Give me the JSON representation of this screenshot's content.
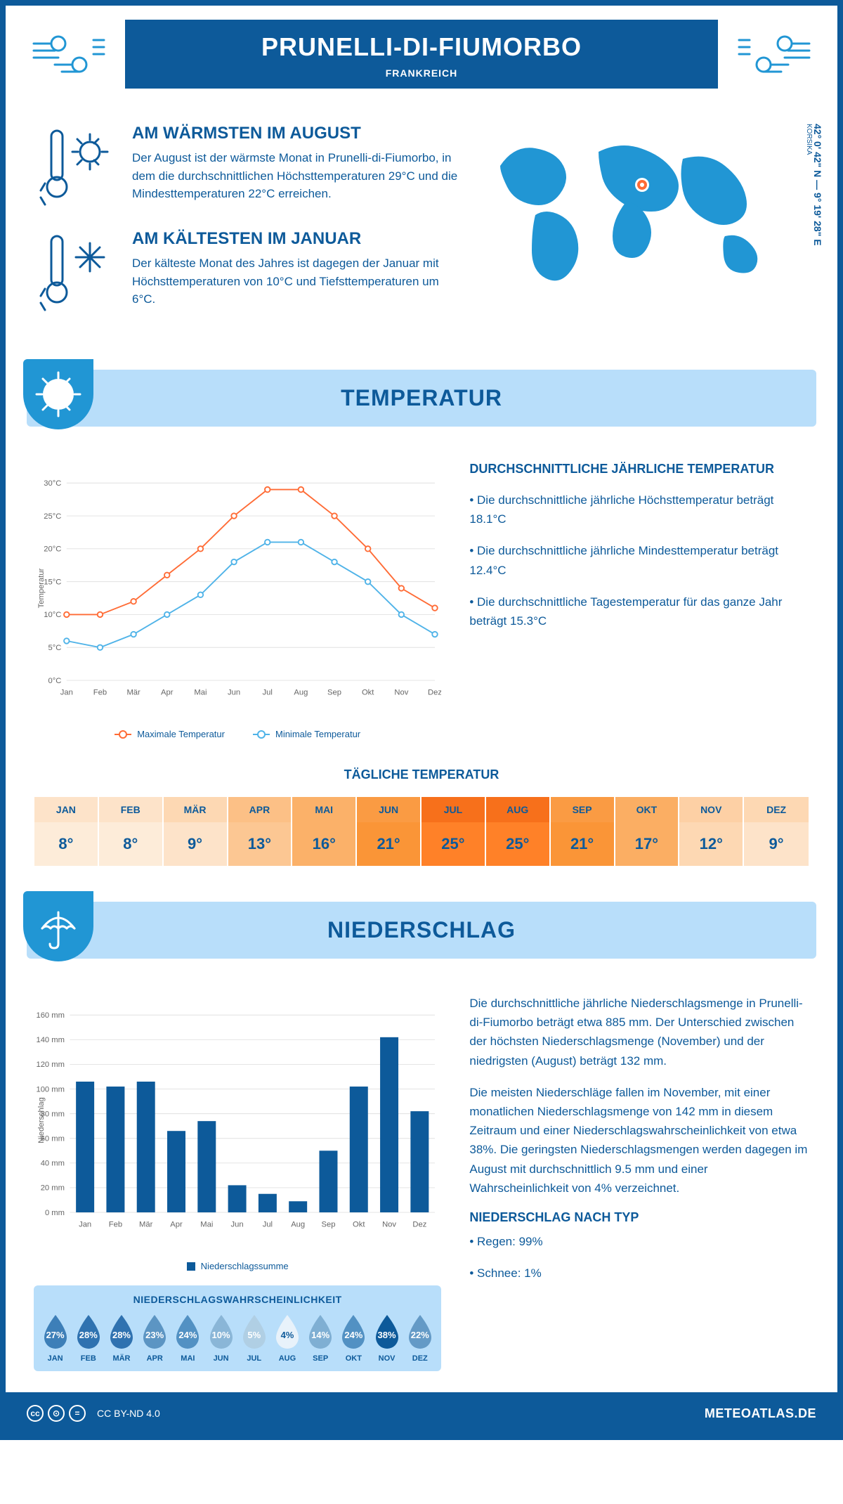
{
  "header": {
    "title": "PRUNELLI-DI-FIUMORBO",
    "country": "FRANKREICH"
  },
  "coords": "42° 0' 42\" N — 9° 19' 28\" E",
  "region": "KORSIKA",
  "summary": {
    "warm_title": "AM WÄRMSTEN IM AUGUST",
    "warm_text": "Der August ist der wärmste Monat in Prunelli-di-Fiumorbo, in dem die durchschnittlichen Höchsttemperaturen 29°C und die Mindesttemperaturen 22°C erreichen.",
    "cold_title": "AM KÄLTESTEN IM JANUAR",
    "cold_text": "Der kälteste Monat des Jahres ist dagegen der Januar mit Höchsttemperaturen von 10°C und Tiefsttemperaturen um 6°C."
  },
  "temp_section": {
    "banner": "TEMPERATUR",
    "info_title": "DURCHSCHNITTLICHE JÄHRLICHE TEMPERATUR",
    "info1": "• Die durchschnittliche jährliche Höchsttemperatur beträgt 18.1°C",
    "info2": "• Die durchschnittliche jährliche Mindesttemperatur beträgt 12.4°C",
    "info3": "• Die durchschnittliche Tagestemperatur für das ganze Jahr beträgt 15.3°C",
    "legend_max": "Maximale Temperatur",
    "legend_min": "Minimale Temperatur",
    "chart": {
      "months": [
        "Jan",
        "Feb",
        "Mär",
        "Apr",
        "Mai",
        "Jun",
        "Jul",
        "Aug",
        "Sep",
        "Okt",
        "Nov",
        "Dez"
      ],
      "max": [
        10,
        10,
        12,
        16,
        20,
        25,
        29,
        29,
        25,
        20,
        14,
        11
      ],
      "min": [
        6,
        5,
        7,
        10,
        13,
        18,
        21,
        21,
        18,
        15,
        10,
        7
      ],
      "ylim": [
        0,
        30
      ],
      "ytick": 5,
      "ylabel": "Temperatur",
      "max_color": "#ff6b35",
      "min_color": "#4fb3e8",
      "grid_color": "#e0e0e0"
    }
  },
  "daily_temp": {
    "title": "TÄGLICHE TEMPERATUR",
    "months": [
      "JAN",
      "FEB",
      "MÄR",
      "APR",
      "MAI",
      "JUN",
      "JUL",
      "AUG",
      "SEP",
      "OKT",
      "NOV",
      "DEZ"
    ],
    "values": [
      "8°",
      "8°",
      "9°",
      "13°",
      "16°",
      "21°",
      "25°",
      "25°",
      "21°",
      "17°",
      "12°",
      "9°"
    ],
    "header_colors": [
      "#fde3c9",
      "#fde3c9",
      "#fdd8b3",
      "#fcc086",
      "#fbb169",
      "#fa9b43",
      "#f7701b",
      "#f7701b",
      "#fa9b43",
      "#fbae63",
      "#fdd0a5",
      "#fdd8b3"
    ],
    "cell_colors": [
      "#fdecd9",
      "#fdecd9",
      "#fde3c9",
      "#fcc793",
      "#fbb169",
      "#fa9537",
      "#ff8128",
      "#ff8128",
      "#fa9537",
      "#fbae63",
      "#fdd8b3",
      "#fde3c9"
    ]
  },
  "precip_section": {
    "banner": "NIEDERSCHLAG",
    "text1": "Die durchschnittliche jährliche Niederschlagsmenge in Prunelli-di-Fiumorbo beträgt etwa 885 mm. Der Unterschied zwischen der höchsten Niederschlagsmenge (November) und der niedrigsten (August) beträgt 132 mm.",
    "text2": "Die meisten Niederschläge fallen im November, mit einer monatlichen Niederschlagsmenge von 142 mm in diesem Zeitraum und einer Niederschlagswahrscheinlichkeit von etwa 38%. Die geringsten Niederschlagsmengen werden dagegen im August mit durchschnittlich 9.5 mm und einer Wahrscheinlichkeit von 4% verzeichnet.",
    "type_title": "NIEDERSCHLAG NACH TYP",
    "type1": "• Regen: 99%",
    "type2": "• Schnee: 1%",
    "chart": {
      "months": [
        "Jan",
        "Feb",
        "Mär",
        "Apr",
        "Mai",
        "Jun",
        "Jul",
        "Aug",
        "Sep",
        "Okt",
        "Nov",
        "Dez"
      ],
      "values": [
        106,
        102,
        106,
        66,
        74,
        22,
        15,
        9,
        50,
        102,
        142,
        82
      ],
      "ylim": [
        0,
        160
      ],
      "ytick": 20,
      "ylabel": "Niederschlag",
      "bar_color": "#0d5a9a",
      "legend": "Niederschlagssumme"
    },
    "prob": {
      "title": "NIEDERSCHLAGSWAHRSCHEINLICHKEIT",
      "months": [
        "JAN",
        "FEB",
        "MÄR",
        "APR",
        "MAI",
        "JUN",
        "JUL",
        "AUG",
        "SEP",
        "OKT",
        "NOV",
        "DEZ"
      ],
      "values": [
        "27%",
        "28%",
        "28%",
        "23%",
        "24%",
        "10%",
        "5%",
        "4%",
        "14%",
        "24%",
        "38%",
        "22%"
      ],
      "colors": [
        "#3d7fb8",
        "#2f72b0",
        "#2f72b0",
        "#5c95c3",
        "#5291c3",
        "#8ab6d7",
        "#b0cfe4",
        "#e8f2fa",
        "#7fafd3",
        "#5291c3",
        "#0d5a9a",
        "#649ac6"
      ],
      "text_colors": [
        "#fff",
        "#fff",
        "#fff",
        "#fff",
        "#fff",
        "#fff",
        "#fff",
        "#0d5a9a",
        "#fff",
        "#fff",
        "#fff",
        "#fff"
      ]
    }
  },
  "footer": {
    "license": "CC BY-ND 4.0",
    "brand": "METEOATLAS.DE"
  }
}
